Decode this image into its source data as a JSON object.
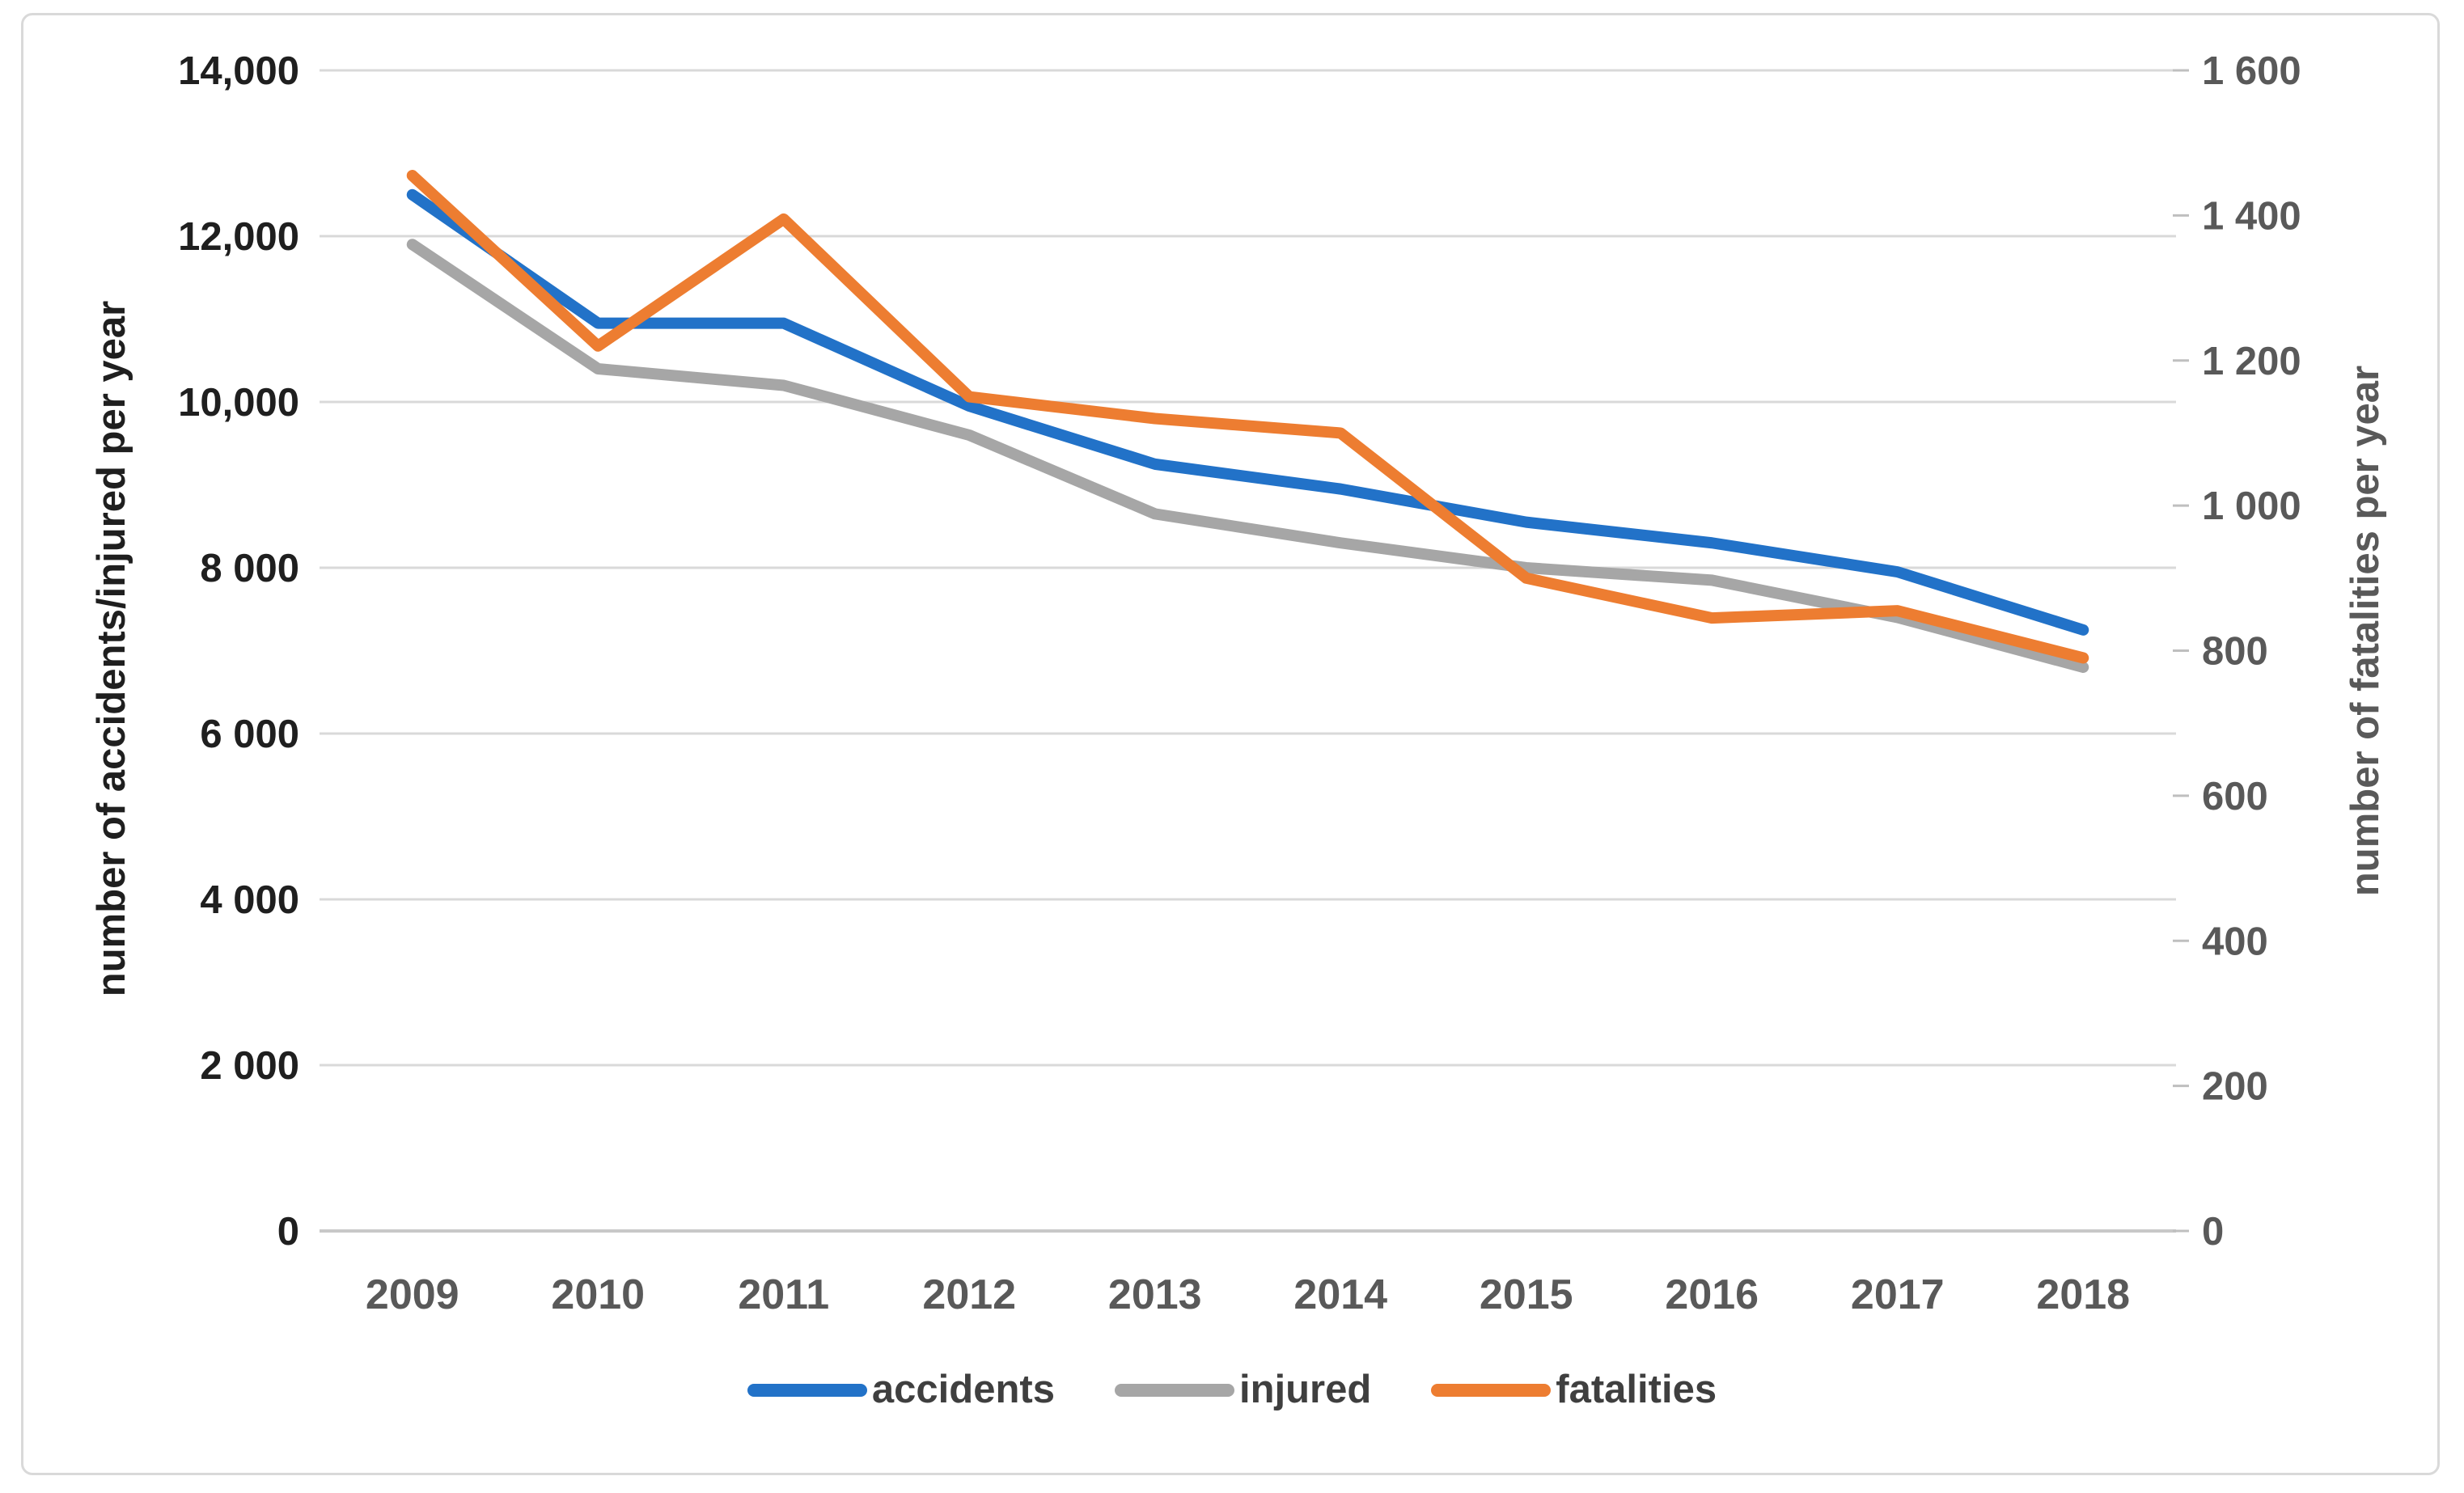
{
  "chart_data": {
    "type": "line",
    "title": "",
    "x_categories": [
      "2009",
      "2010",
      "2011",
      "2012",
      "2013",
      "2014",
      "2015",
      "2016",
      "2017",
      "2018"
    ],
    "left_axis": {
      "label": "number of accidents/injured per year",
      "min": 0,
      "max": 14000,
      "ticks": [
        {
          "value": 14000,
          "label": "14,000"
        },
        {
          "value": 12000,
          "label": "12,000"
        },
        {
          "value": 10000,
          "label": "10,000"
        },
        {
          "value": 8000,
          "label": "8 000"
        },
        {
          "value": 6000,
          "label": "6 000"
        },
        {
          "value": 4000,
          "label": "4 000"
        },
        {
          "value": 2000,
          "label": "2 000"
        },
        {
          "value": 0,
          "label": "0"
        }
      ]
    },
    "right_axis": {
      "label": "number of fatalities per year",
      "min": 0,
      "max": 1600,
      "ticks": [
        {
          "value": 1600,
          "label": "1 600"
        },
        {
          "value": 1400,
          "label": "1 400"
        },
        {
          "value": 1200,
          "label": "1 200"
        },
        {
          "value": 1000,
          "label": "1 000"
        },
        {
          "value": 800,
          "label": "800"
        },
        {
          "value": 600,
          "label": "600"
        },
        {
          "value": 400,
          "label": "400"
        },
        {
          "value": 200,
          "label": "200"
        },
        {
          "value": 0,
          "label": "0"
        }
      ]
    },
    "series": [
      {
        "name": "accidents",
        "axis": "left",
        "color": "#2272c8",
        "values": [
          12500,
          10950,
          10950,
          9950,
          9250,
          8950,
          8550,
          8300,
          7950,
          7250
        ]
      },
      {
        "name": "injured",
        "axis": "left",
        "color": "#a6a6a6",
        "values": [
          11900,
          10400,
          10200,
          9600,
          8650,
          8300,
          8000,
          7850,
          7400,
          6800
        ]
      },
      {
        "name": "fatalities",
        "axis": "right",
        "color": "#ed7d31",
        "values": [
          1455,
          1220,
          1395,
          1150,
          1120,
          1100,
          900,
          845,
          855,
          790
        ]
      }
    ],
    "legend": [
      "accidents",
      "injured",
      "fatalities"
    ],
    "legend_position": "bottom",
    "grid": true
  },
  "colors": {
    "gridline": "#d9d9d9",
    "axis_line": "#c8c8c8",
    "tick_mark": "#bfbfbf",
    "left_tick_text": "#1f1f1f",
    "right_tick_text": "#595959",
    "x_tick_text": "#595959",
    "frame_border": "#d9d9d9"
  }
}
